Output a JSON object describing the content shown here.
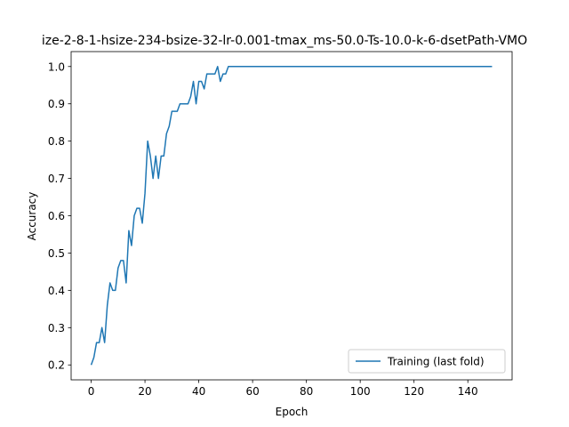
{
  "chart_data": {
    "type": "line",
    "title": "ize-2-8-1-hsize-234-bsize-32-lr-0.001-tmax_ms-50.0-Ts-10.0-k-6-dsetPath-VMO",
    "xlabel": "Epoch",
    "ylabel": "Accuracy",
    "xlim": [
      -7.45,
      156.45
    ],
    "ylim": [
      0.16,
      1.04
    ],
    "xticks": [
      0,
      20,
      40,
      60,
      80,
      100,
      120,
      140
    ],
    "yticks": [
      0.2,
      0.3,
      0.4,
      0.5,
      0.6,
      0.7,
      0.8,
      0.9,
      1.0
    ],
    "xtick_labels": [
      "0",
      "20",
      "40",
      "60",
      "80",
      "100",
      "120",
      "140"
    ],
    "ytick_labels": [
      "0.2",
      "0.3",
      "0.4",
      "0.5",
      "0.6",
      "0.7",
      "0.8",
      "0.9",
      "1.0"
    ],
    "legend_position": "lower-right",
    "grid": false,
    "series": [
      {
        "name": "Training (last fold)",
        "color": "#1f77b4",
        "x": [
          0,
          1,
          2,
          3,
          4,
          5,
          6,
          7,
          8,
          9,
          10,
          11,
          12,
          13,
          14,
          15,
          16,
          17,
          18,
          19,
          20,
          21,
          22,
          23,
          24,
          25,
          26,
          27,
          28,
          29,
          30,
          31,
          32,
          33,
          34,
          35,
          36,
          37,
          38,
          39,
          40,
          41,
          42,
          43,
          44,
          45,
          46,
          47,
          48,
          49,
          50,
          51,
          52,
          53,
          54,
          55,
          56,
          57,
          58,
          59,
          60,
          61,
          62,
          63,
          64,
          65,
          66,
          67,
          68,
          69,
          70,
          71,
          72,
          73,
          74,
          75,
          76,
          77,
          78,
          79,
          80,
          81,
          82,
          83,
          84,
          85,
          86,
          87,
          88,
          89,
          90,
          91,
          92,
          93,
          94,
          95,
          96,
          97,
          98,
          99,
          100,
          101,
          102,
          103,
          104,
          105,
          106,
          107,
          108,
          109,
          110,
          111,
          112,
          113,
          114,
          115,
          116,
          117,
          118,
          119,
          120,
          121,
          122,
          123,
          124,
          125,
          126,
          127,
          128,
          129,
          130,
          131,
          132,
          133,
          134,
          135,
          136,
          137,
          138,
          139,
          140,
          141,
          142,
          143,
          144,
          145,
          146,
          147,
          148,
          149
        ],
        "y": [
          0.2,
          0.22,
          0.26,
          0.26,
          0.3,
          0.26,
          0.36,
          0.42,
          0.4,
          0.4,
          0.46,
          0.48,
          0.48,
          0.42,
          0.56,
          0.52,
          0.6,
          0.62,
          0.62,
          0.58,
          0.66,
          0.8,
          0.76,
          0.7,
          0.76,
          0.7,
          0.76,
          0.76,
          0.82,
          0.84,
          0.88,
          0.88,
          0.88,
          0.9,
          0.9,
          0.9,
          0.9,
          0.92,
          0.96,
          0.9,
          0.96,
          0.96,
          0.94,
          0.98,
          0.98,
          0.98,
          0.98,
          1.0,
          0.96,
          0.98,
          0.98,
          1.0,
          1.0,
          1.0,
          1.0,
          1.0,
          1.0,
          1.0,
          1.0,
          1.0,
          1.0,
          1.0,
          1.0,
          1.0,
          1.0,
          1.0,
          1.0,
          1.0,
          1.0,
          1.0,
          1.0,
          1.0,
          1.0,
          1.0,
          1.0,
          1.0,
          1.0,
          1.0,
          1.0,
          1.0,
          1.0,
          1.0,
          1.0,
          1.0,
          1.0,
          1.0,
          1.0,
          1.0,
          1.0,
          1.0,
          1.0,
          1.0,
          1.0,
          1.0,
          1.0,
          1.0,
          1.0,
          1.0,
          1.0,
          1.0,
          1.0,
          1.0,
          1.0,
          1.0,
          1.0,
          1.0,
          1.0,
          1.0,
          1.0,
          1.0,
          1.0,
          1.0,
          1.0,
          1.0,
          1.0,
          1.0,
          1.0,
          1.0,
          1.0,
          1.0,
          1.0,
          1.0,
          1.0,
          1.0,
          1.0,
          1.0,
          1.0,
          1.0,
          1.0,
          1.0,
          1.0,
          1.0,
          1.0,
          1.0,
          1.0,
          1.0,
          1.0,
          1.0,
          1.0,
          1.0,
          1.0,
          1.0,
          1.0,
          1.0,
          1.0,
          1.0,
          1.0,
          1.0,
          1.0,
          1.0
        ]
      }
    ]
  }
}
